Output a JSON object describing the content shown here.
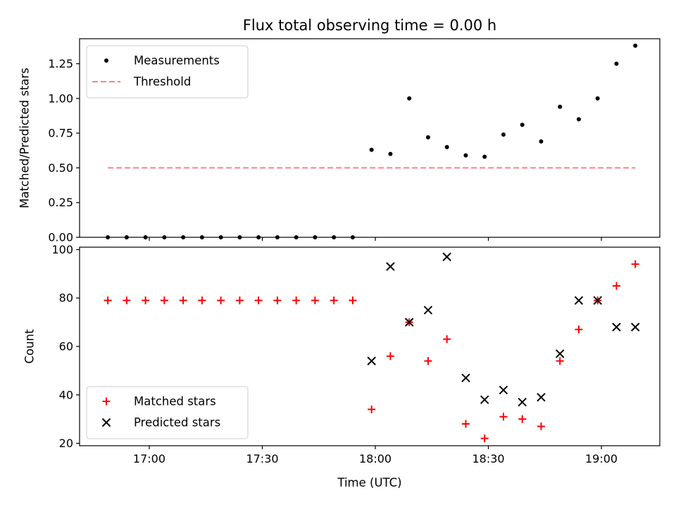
{
  "chart_data": {
    "title": "Flux total observing time = 0.00 h",
    "xlabel": "Time (UTC)",
    "x_tick_labels": [
      "17:00",
      "17:30",
      "18:00",
      "18:30",
      "19:00"
    ],
    "x_ticks_min": [
      1020,
      1050,
      1080,
      1110,
      1140
    ],
    "x_range_min": [
      1001.5,
      1155.5
    ],
    "panels": [
      {
        "type": "scatter",
        "ylabel": "Matched/Predicted stars",
        "ylim": [
          0,
          1.43
        ],
        "y_ticks": [
          0.0,
          0.25,
          0.5,
          0.75,
          1.0,
          1.25
        ],
        "y_tick_labels": [
          "0.00",
          "0.25",
          "0.50",
          "0.75",
          "1.00",
          "1.25"
        ],
        "legend_position": "upper-left",
        "series": [
          {
            "name": "Measurements",
            "marker": "dot",
            "color": "#000000",
            "x_time": [
              "16:49",
              "16:54",
              "16:59",
              "17:04",
              "17:09",
              "17:14",
              "17:19",
              "17:24",
              "17:29",
              "17:34",
              "17:39",
              "17:44",
              "17:49",
              "17:54",
              "17:59",
              "18:04",
              "18:09",
              "18:14",
              "18:19",
              "18:24",
              "18:29",
              "18:34",
              "18:39",
              "18:44",
              "18:49",
              "18:54",
              "18:59",
              "19:04",
              "19:09"
            ],
            "y": [
              0,
              0,
              0,
              0,
              0,
              0,
              0,
              0,
              0,
              0,
              0,
              0,
              0,
              0,
              0.63,
              0.6,
              1.0,
              0.72,
              0.65,
              0.59,
              0.58,
              0.74,
              0.81,
              0.69,
              0.94,
              0.85,
              1.0,
              1.25,
              1.38
            ]
          },
          {
            "name": "Threshold",
            "marker": "dashed-line",
            "color": "#ff7f7f",
            "x_time": [
              "16:49",
              "19:09"
            ],
            "y": [
              0.5,
              0.5
            ]
          }
        ]
      },
      {
        "type": "scatter",
        "ylabel": "Count",
        "ylim": [
          19,
          101
        ],
        "y_ticks": [
          20,
          40,
          60,
          80,
          100
        ],
        "y_tick_labels": [
          "20",
          "40",
          "60",
          "80",
          "100"
        ],
        "legend_position": "lower-left",
        "series": [
          {
            "name": "Matched stars",
            "marker": "plus",
            "color": "#ff0000",
            "x_time": [
              "16:49",
              "16:54",
              "16:59",
              "17:04",
              "17:09",
              "17:14",
              "17:19",
              "17:24",
              "17:29",
              "17:34",
              "17:39",
              "17:44",
              "17:49",
              "17:54",
              "17:59",
              "18:04",
              "18:09",
              "18:14",
              "18:19",
              "18:24",
              "18:29",
              "18:34",
              "18:39",
              "18:44",
              "18:49",
              "18:54",
              "18:59",
              "19:04",
              "19:09"
            ],
            "y": [
              79,
              79,
              79,
              79,
              79,
              79,
              79,
              79,
              79,
              79,
              79,
              79,
              79,
              79,
              34,
              56,
              70,
              54,
              63,
              28,
              22,
              31,
              30,
              27,
              54,
              67,
              79,
              85,
              94
            ]
          },
          {
            "name": "Predicted stars",
            "marker": "x",
            "color": "#000000",
            "x_time": [
              "17:59",
              "18:04",
              "18:09",
              "18:14",
              "18:19",
              "18:24",
              "18:29",
              "18:34",
              "18:39",
              "18:44",
              "18:49",
              "18:54",
              "18:59",
              "19:04",
              "19:09"
            ],
            "y": [
              54,
              93,
              70,
              75,
              97,
              47,
              38,
              42,
              37,
              39,
              57,
              79,
              79,
              68,
              68
            ]
          }
        ]
      }
    ]
  }
}
